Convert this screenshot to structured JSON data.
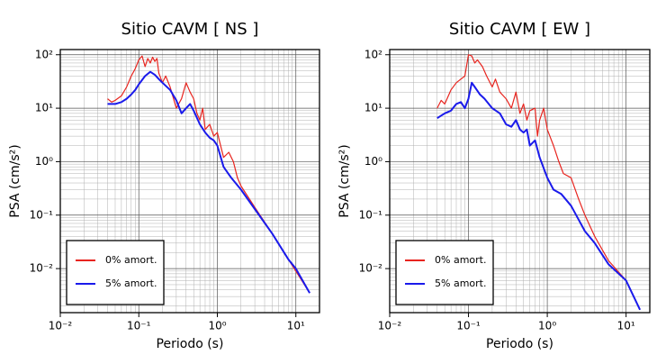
{
  "chart_data": [
    {
      "type": "line",
      "title": "Sitio CAVM [ NS ]",
      "xlabel": "Periodo (s)",
      "ylabel": "PSA (cm/s²)",
      "log_x": true,
      "log_y": true,
      "grid": true,
      "legend": "lower left",
      "xlim": [
        0.01,
        20
      ],
      "ylim": [
        0.0015,
        125
      ],
      "xticks": [
        {
          "value": 0.01,
          "label": "10⁻²"
        },
        {
          "value": 0.1,
          "label": "10⁻¹"
        },
        {
          "value": 1,
          "label": "10⁰"
        },
        {
          "value": 10,
          "label": "10¹"
        }
      ],
      "yticks": [
        {
          "value": 0.01,
          "label": "10⁻²"
        },
        {
          "value": 0.1,
          "label": "10⁻¹"
        },
        {
          "value": 1,
          "label": "10⁰"
        },
        {
          "value": 10,
          "label": "10¹"
        },
        {
          "value": 100,
          "label": "10²"
        }
      ],
      "series": [
        {
          "name": "0% amort.",
          "color": "#e8251f",
          "x": [
            0.04,
            0.045,
            0.05,
            0.06,
            0.07,
            0.08,
            0.09,
            0.1,
            0.11,
            0.12,
            0.13,
            0.14,
            0.15,
            0.16,
            0.17,
            0.18,
            0.2,
            0.22,
            0.25,
            0.3,
            0.35,
            0.4,
            0.45,
            0.5,
            0.55,
            0.6,
            0.65,
            0.7,
            0.8,
            0.9,
            1.0,
            1.2,
            1.4,
            1.6,
            1.8,
            2,
            3,
            5,
            8,
            15
          ],
          "values": [
            15,
            13,
            14,
            17,
            25,
            40,
            55,
            80,
            95,
            60,
            85,
            70,
            90,
            75,
            85,
            45,
            30,
            40,
            25,
            10,
            15,
            30,
            20,
            15,
            8,
            6,
            10,
            4,
            5,
            3,
            3.5,
            1.2,
            1.5,
            1.0,
            0.5,
            0.35,
            0.14,
            0.045,
            0.015,
            0.0035
          ]
        },
        {
          "name": "5% amort.",
          "color": "#1a1aeb",
          "x": [
            0.04,
            0.05,
            0.06,
            0.07,
            0.08,
            0.09,
            0.1,
            0.12,
            0.14,
            0.16,
            0.18,
            0.2,
            0.25,
            0.3,
            0.35,
            0.4,
            0.45,
            0.5,
            0.6,
            0.7,
            0.8,
            0.9,
            1.0,
            1.2,
            1.5,
            2,
            3,
            5,
            8,
            10,
            15
          ],
          "values": [
            12,
            12,
            13,
            15,
            18,
            22,
            28,
            40,
            48,
            42,
            35,
            30,
            22,
            14,
            8,
            10,
            12,
            9,
            5,
            3.5,
            2.8,
            2.5,
            2.0,
            0.8,
            0.5,
            0.3,
            0.13,
            0.045,
            0.015,
            0.01,
            0.0035
          ]
        }
      ]
    },
    {
      "type": "line",
      "title": "Sitio CAVM [ EW ]",
      "xlabel": "Periodo (s)",
      "ylabel": "PSA (cm/s²)",
      "log_x": true,
      "log_y": true,
      "grid": true,
      "legend": "lower left",
      "xlim": [
        0.01,
        20
      ],
      "ylim": [
        0.0015,
        125
      ],
      "xticks": [
        {
          "value": 0.01,
          "label": "10⁻²"
        },
        {
          "value": 0.1,
          "label": "10⁻¹"
        },
        {
          "value": 1,
          "label": "10⁰"
        },
        {
          "value": 10,
          "label": "10¹"
        }
      ],
      "yticks": [
        {
          "value": 0.01,
          "label": "10⁻²"
        },
        {
          "value": 0.1,
          "label": "10⁻¹"
        },
        {
          "value": 1,
          "label": "10⁰"
        },
        {
          "value": 10,
          "label": "10¹"
        },
        {
          "value": 100,
          "label": "10²"
        }
      ],
      "series": [
        {
          "name": "0% amort.",
          "color": "#e8251f",
          "x": [
            0.04,
            0.045,
            0.05,
            0.06,
            0.07,
            0.08,
            0.09,
            0.1,
            0.11,
            0.12,
            0.13,
            0.15,
            0.17,
            0.2,
            0.22,
            0.25,
            0.3,
            0.35,
            0.4,
            0.45,
            0.5,
            0.55,
            0.6,
            0.7,
            0.75,
            0.8,
            0.9,
            1.0,
            1.2,
            1.4,
            1.6,
            2,
            2.5,
            3,
            4,
            6,
            10,
            15
          ],
          "values": [
            10,
            14,
            12,
            22,
            30,
            35,
            40,
            100,
            95,
            70,
            80,
            60,
            40,
            25,
            35,
            20,
            15,
            10,
            20,
            8,
            12,
            6,
            9,
            10,
            3,
            6,
            10,
            4,
            2,
            1.0,
            0.6,
            0.5,
            0.2,
            0.1,
            0.04,
            0.014,
            0.006,
            0.0017
          ]
        },
        {
          "name": "5% amort.",
          "color": "#1a1aeb",
          "x": [
            0.04,
            0.05,
            0.06,
            0.07,
            0.08,
            0.09,
            0.1,
            0.11,
            0.12,
            0.14,
            0.16,
            0.2,
            0.25,
            0.3,
            0.35,
            0.4,
            0.45,
            0.5,
            0.55,
            0.6,
            0.7,
            0.8,
            1.0,
            1.2,
            1.5,
            2,
            3,
            4,
            6,
            10,
            15
          ],
          "values": [
            6.5,
            8,
            9,
            12,
            13,
            10,
            15,
            30,
            25,
            18,
            15,
            10,
            8,
            5,
            4.5,
            6,
            4,
            3.5,
            4,
            2,
            2.5,
            1.2,
            0.5,
            0.3,
            0.25,
            0.15,
            0.05,
            0.03,
            0.012,
            0.006,
            0.0017
          ]
        }
      ]
    }
  ]
}
